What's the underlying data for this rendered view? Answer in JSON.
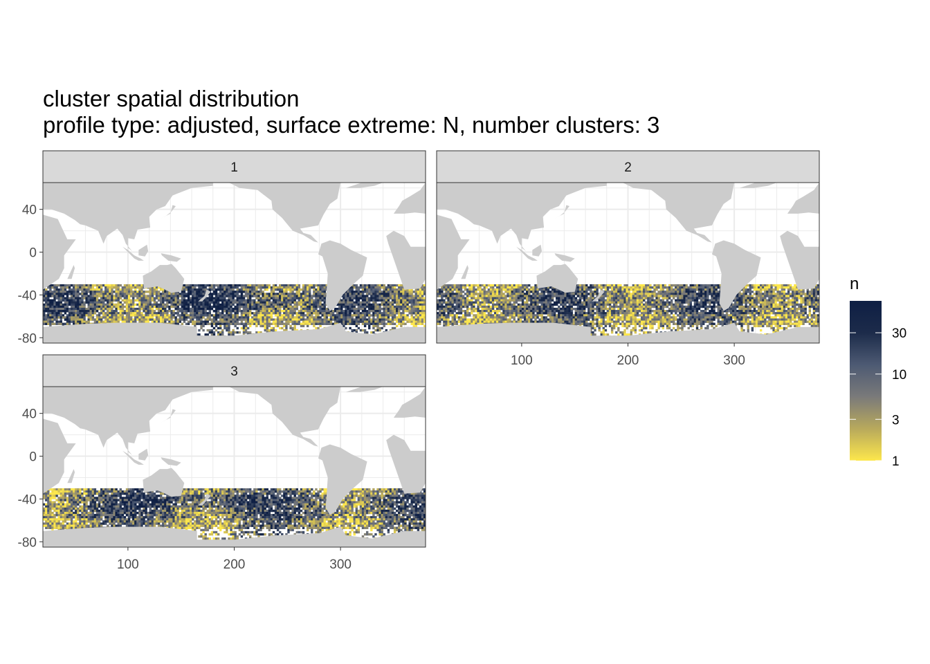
{
  "chart_data": {
    "type": "heatmap",
    "title": "cluster spatial distribution",
    "subtitle": "profile type: adjusted, surface extreme: N, number clusters: 3",
    "xlim": [
      20,
      380
    ],
    "ylim": [
      -85,
      65
    ],
    "x_ticks": [
      100,
      200,
      300
    ],
    "y_ticks": [
      40,
      0,
      -40,
      -80
    ],
    "data_lat_range": [
      -80,
      -30
    ],
    "panels": [
      {
        "label": "1"
      },
      {
        "label": "2"
      },
      {
        "label": "3"
      }
    ],
    "legend": {
      "title": "n",
      "scale": "log",
      "range": [
        1,
        70
      ],
      "breaks": [
        1,
        3,
        10,
        30
      ],
      "colors": [
        "#FDE74C",
        "#B8A95C",
        "#7A7A7A",
        "#4D5A73",
        "#1C2B4A",
        "#0E1F44"
      ]
    },
    "colors": {
      "land": "#CCCCCC",
      "panel_bg": "#FFFFFF",
      "grid": "#EBEBEB",
      "strip_bg": "#D9D9D9",
      "border": "#333333"
    }
  }
}
